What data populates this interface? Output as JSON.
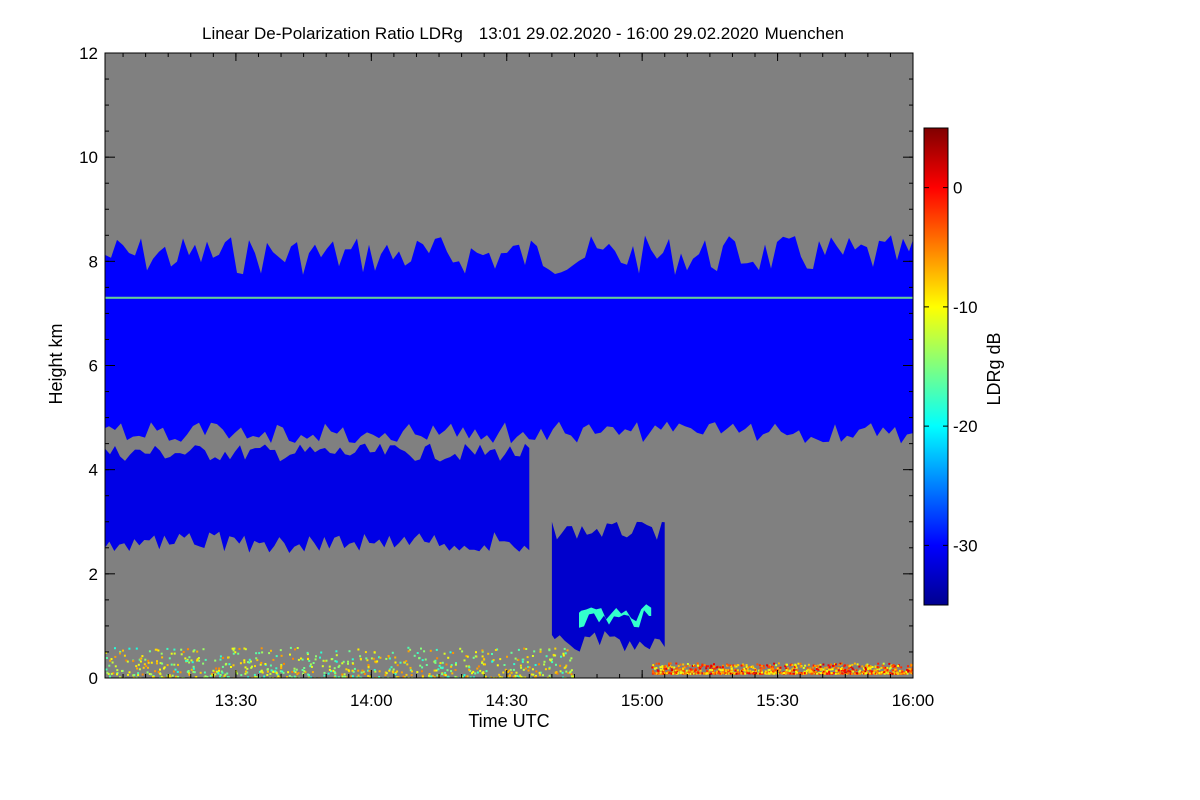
{
  "chart_data": {
    "type": "heatmap",
    "title": "Linear De-Polarization Ratio LDRg",
    "time_range": "13:01 29.02.2020 - 16:00 29.02.2020",
    "location": "Muenchen",
    "xlabel": "Time UTC",
    "ylabel": "Height km",
    "x_range_minutes_utc": [
      781,
      960
    ],
    "xticks": [
      {
        "label": "13:30",
        "value": 810
      },
      {
        "label": "14:00",
        "value": 840
      },
      {
        "label": "14:30",
        "value": 870
      },
      {
        "label": "15:00",
        "value": 900
      },
      {
        "label": "15:30",
        "value": 930
      },
      {
        "label": "16:00",
        "value": 960
      }
    ],
    "ylim": [
      0,
      12
    ],
    "yticks": [
      "0",
      "2",
      "4",
      "6",
      "8",
      "10",
      "12"
    ],
    "colorbar": {
      "label": "LDRg dB",
      "range": [
        -35,
        5
      ],
      "ticks": [
        {
          "label": "0",
          "value": 0
        },
        {
          "label": "-10",
          "value": -10
        },
        {
          "label": "-20",
          "value": -20
        },
        {
          "label": "-30",
          "value": -30
        }
      ],
      "colormap": "jet"
    },
    "background_color": "#808080",
    "features": [
      {
        "name": "upper cloud layer",
        "time_start": 781,
        "time_end": 960,
        "height_base_km": 4.5,
        "height_top_km": 8.5,
        "ldr_db": -30
      },
      {
        "name": "mid-level cloud",
        "time_start": 781,
        "time_end": 875,
        "height_base_km": 2.4,
        "height_top_km": 4.5,
        "ldr_db": -31
      },
      {
        "name": "virga / fall streak",
        "time_start": 880,
        "time_end": 905,
        "height_base_km": 0.5,
        "height_top_km": 3.0,
        "ldr_db": -32
      },
      {
        "name": "melting layer",
        "time_start": 886,
        "time_end": 902,
        "height_base_km": 1.0,
        "height_top_km": 1.3,
        "ldr_db": -18
      },
      {
        "name": "near-surface clutter",
        "time_start": 781,
        "time_end": 885,
        "height_base_km": 0.0,
        "height_top_km": 0.6,
        "ldr_db": -12
      },
      {
        "name": "near-surface clutter east",
        "time_start": 902,
        "time_end": 960,
        "height_base_km": 0.1,
        "height_top_km": 0.3,
        "ldr_db": -5
      },
      {
        "name": "horizontal artefact line",
        "time_start": 781,
        "time_end": 960,
        "height_base_km": 7.28,
        "height_top_km": 7.32,
        "ldr_db": -15
      }
    ]
  }
}
